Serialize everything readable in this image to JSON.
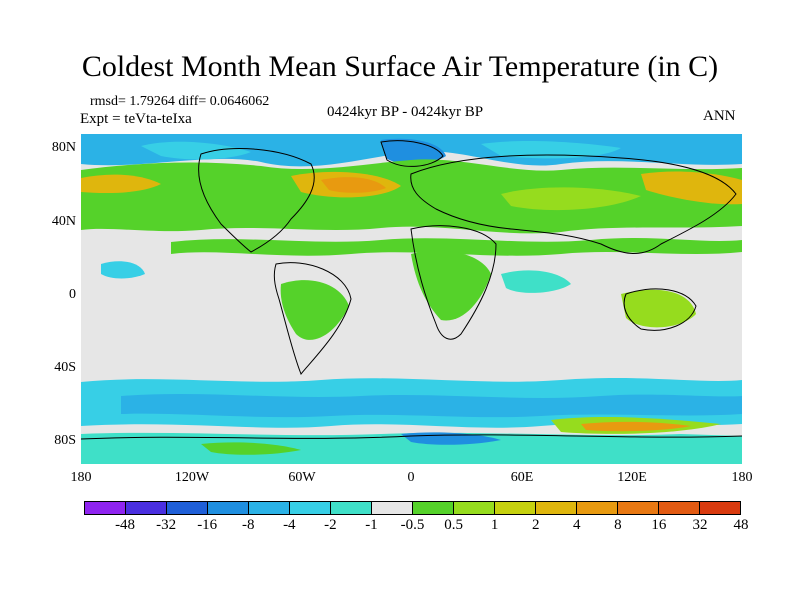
{
  "title": "Coldest Month Mean Surface Air Temperature (in C)",
  "stats": "rmsd= 1.79264 diff= 0.0646062",
  "expt": "Expt = teVta-teIxa",
  "center_label": "0424kyr BP - 0424kyr BP",
  "season": "ANN",
  "lat_labels": [
    "80N",
    "40N",
    "0",
    "40S",
    "80S"
  ],
  "lon_labels": [
    "180",
    "120W",
    "60W",
    "0",
    "60E",
    "120E",
    "180"
  ],
  "colorbar": {
    "colors": [
      "#8f24f0",
      "#4a2fe0",
      "#1f5fd8",
      "#1f8fe0",
      "#2bb2e6",
      "#37cfe6",
      "#3fe0c8",
      "#e6e6e6",
      "#55d22a",
      "#96dc1e",
      "#c6d10f",
      "#dfb60d",
      "#e89a10",
      "#e87812",
      "#e25a12",
      "#d93a0e"
    ],
    "labels": [
      "-48",
      "-32",
      "-16",
      "-8",
      "-4",
      "-2",
      "-1",
      "-0.5",
      "0.5",
      "1",
      "2",
      "4",
      "8",
      "16",
      "32",
      "48"
    ]
  },
  "map_colors": {
    "ocean_neutral": "#e6e6e6",
    "warm_1": "#55d22a",
    "warm_2": "#96dc1e",
    "warm_4": "#dfb60d",
    "warm_8": "#e89a10",
    "cool_1": "#3fe0c8",
    "cool_2": "#37cfe6",
    "cool_4": "#2bb2e6",
    "cool_8": "#1f8fe0",
    "cool_16": "#1f5fd8",
    "coast": "#000000"
  }
}
